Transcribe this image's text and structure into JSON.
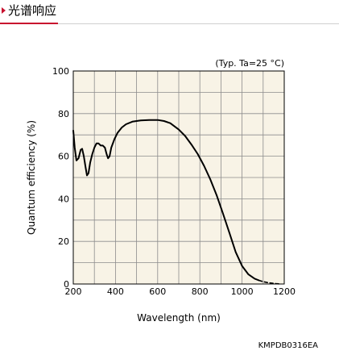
{
  "header": {
    "title": "光谱响应"
  },
  "chart_data": {
    "type": "line",
    "title": "",
    "annotation": "(Typ. Ta=25 °C)",
    "xlabel": "Wavelength (nm)",
    "ylabel": "Quantum efficiency (%)",
    "xlim": [
      200,
      1200
    ],
    "ylim": [
      0,
      100
    ],
    "x_ticks": [
      200,
      400,
      600,
      800,
      1000,
      1200
    ],
    "y_ticks": [
      0,
      20,
      40,
      60,
      80,
      100
    ],
    "grid": true,
    "grid_minor_step_x": 100,
    "grid_minor_step_y": 10,
    "legend": "none",
    "line_color": "#000000",
    "background_color": "#f8f3e6",
    "series": [
      {
        "style": "solid",
        "points": [
          [
            200,
            72
          ],
          [
            207,
            64
          ],
          [
            215,
            58
          ],
          [
            225,
            59
          ],
          [
            235,
            63
          ],
          [
            242,
            63.5
          ],
          [
            250,
            60
          ],
          [
            258,
            55
          ],
          [
            265,
            51
          ],
          [
            272,
            52
          ],
          [
            280,
            57
          ],
          [
            290,
            61
          ],
          [
            300,
            64
          ],
          [
            310,
            66
          ],
          [
            320,
            66
          ],
          [
            330,
            65
          ],
          [
            340,
            65
          ],
          [
            350,
            64
          ],
          [
            358,
            61
          ],
          [
            365,
            59
          ],
          [
            372,
            60
          ],
          [
            380,
            64
          ],
          [
            395,
            68
          ],
          [
            410,
            71
          ],
          [
            430,
            73.5
          ],
          [
            450,
            75
          ],
          [
            480,
            76.2
          ],
          [
            520,
            76.8
          ],
          [
            560,
            77
          ],
          [
            600,
            77
          ],
          [
            630,
            76.5
          ],
          [
            660,
            75.5
          ],
          [
            700,
            72.5
          ],
          [
            730,
            69.5
          ],
          [
            760,
            65.5
          ],
          [
            790,
            61
          ],
          [
            820,
            55.5
          ],
          [
            850,
            49
          ],
          [
            880,
            41.5
          ],
          [
            910,
            33
          ],
          [
            940,
            24
          ],
          [
            970,
            15
          ],
          [
            1000,
            8.5
          ],
          [
            1030,
            4.5
          ],
          [
            1060,
            2.5
          ],
          [
            1080,
            1.7
          ]
        ]
      },
      {
        "style": "dashed",
        "points": [
          [
            1080,
            1.7
          ],
          [
            1100,
            1.1
          ],
          [
            1120,
            0.7
          ],
          [
            1140,
            0.4
          ],
          [
            1160,
            0.2
          ],
          [
            1180,
            0.05
          ]
        ]
      }
    ]
  },
  "footer": {
    "code": "KMPDB0316EA"
  }
}
